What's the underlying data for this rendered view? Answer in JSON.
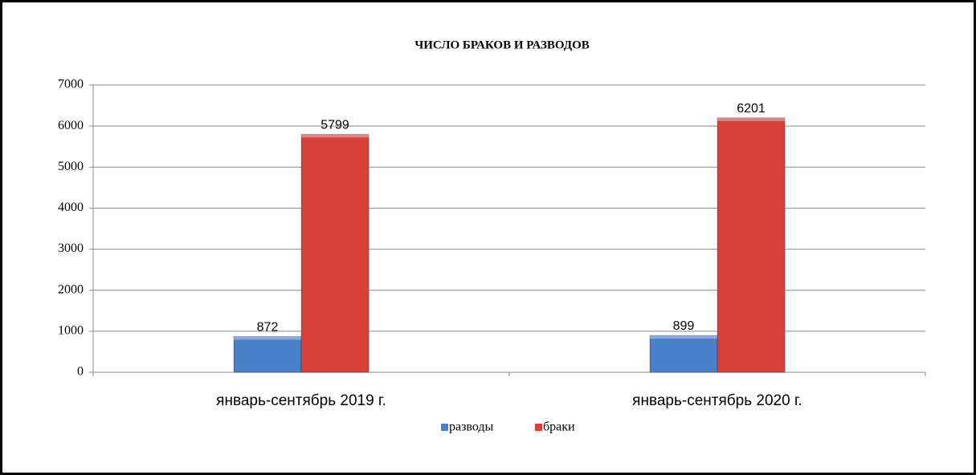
{
  "chart_data": {
    "type": "bar",
    "title": "ЧИСЛО БРАКОВ И РАЗВОДОВ",
    "categories": [
      "январь-сентябрь 2019 г.",
      "январь-сентябрь 2020 г."
    ],
    "series": [
      {
        "name": "разводы",
        "color": "#4a7fc9",
        "values": [
          872,
          899
        ]
      },
      {
        "name": "браки",
        "color": "#d8403b",
        "values": [
          5799,
          6201
        ]
      }
    ],
    "ylim": [
      0,
      7000
    ],
    "yticks": [
      0,
      1000,
      2000,
      3000,
      4000,
      5000,
      6000,
      7000
    ],
    "grid": true,
    "legend": "bottom"
  }
}
